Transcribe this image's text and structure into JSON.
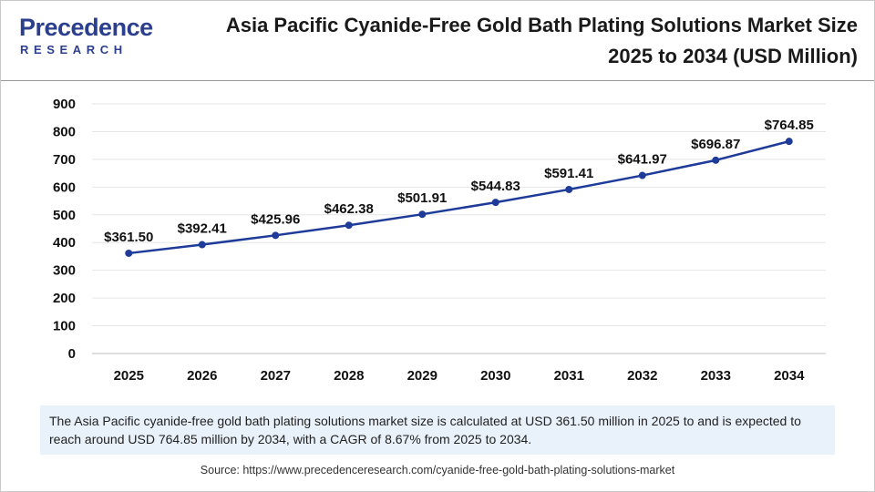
{
  "brand": {
    "name": "Precedence",
    "sub": "RESEARCH"
  },
  "header": {
    "title": "Asia Pacific Cyanide-Free Gold Bath Plating Solutions Market Size 2025 to 2034 (USD Million)"
  },
  "colors": {
    "line": "#1f3b99",
    "grid": "#e6e6e6",
    "brand": "#2b3f8e",
    "note_bg": "#e9f1fa"
  },
  "chart_data": {
    "type": "line",
    "title": "Asia Pacific Cyanide-Free Gold Bath Plating Solutions Market Size 2025 to 2034 (USD Million)",
    "categories": [
      "2025",
      "2026",
      "2027",
      "2028",
      "2029",
      "2030",
      "2031",
      "2032",
      "2033",
      "2034"
    ],
    "values": [
      361.5,
      392.41,
      425.96,
      462.38,
      501.91,
      544.83,
      591.41,
      641.97,
      696.87,
      764.85
    ],
    "data_labels": [
      "$361.50",
      "$392.41",
      "$425.96",
      "$462.38",
      "$501.91",
      "$544.83",
      "$591.41",
      "$641.97",
      "$696.87",
      "$764.85"
    ],
    "yticks": [
      "0",
      "100",
      "200",
      "300",
      "400",
      "500",
      "600",
      "700",
      "800",
      "900"
    ],
    "ylim": [
      0,
      900
    ],
    "xlabel": "",
    "ylabel": "",
    "grid": true
  },
  "note": {
    "text": "The Asia Pacific cyanide-free gold bath plating solutions market size is calculated at USD 361.50 million in 2025 to and is expected to reach around USD 764.85 million by 2034, with a CAGR of 8.67% from 2025 to 2034."
  },
  "source": {
    "text": "Source: https://www.precedenceresearch.com/cyanide-free-gold-bath-plating-solutions-market"
  }
}
